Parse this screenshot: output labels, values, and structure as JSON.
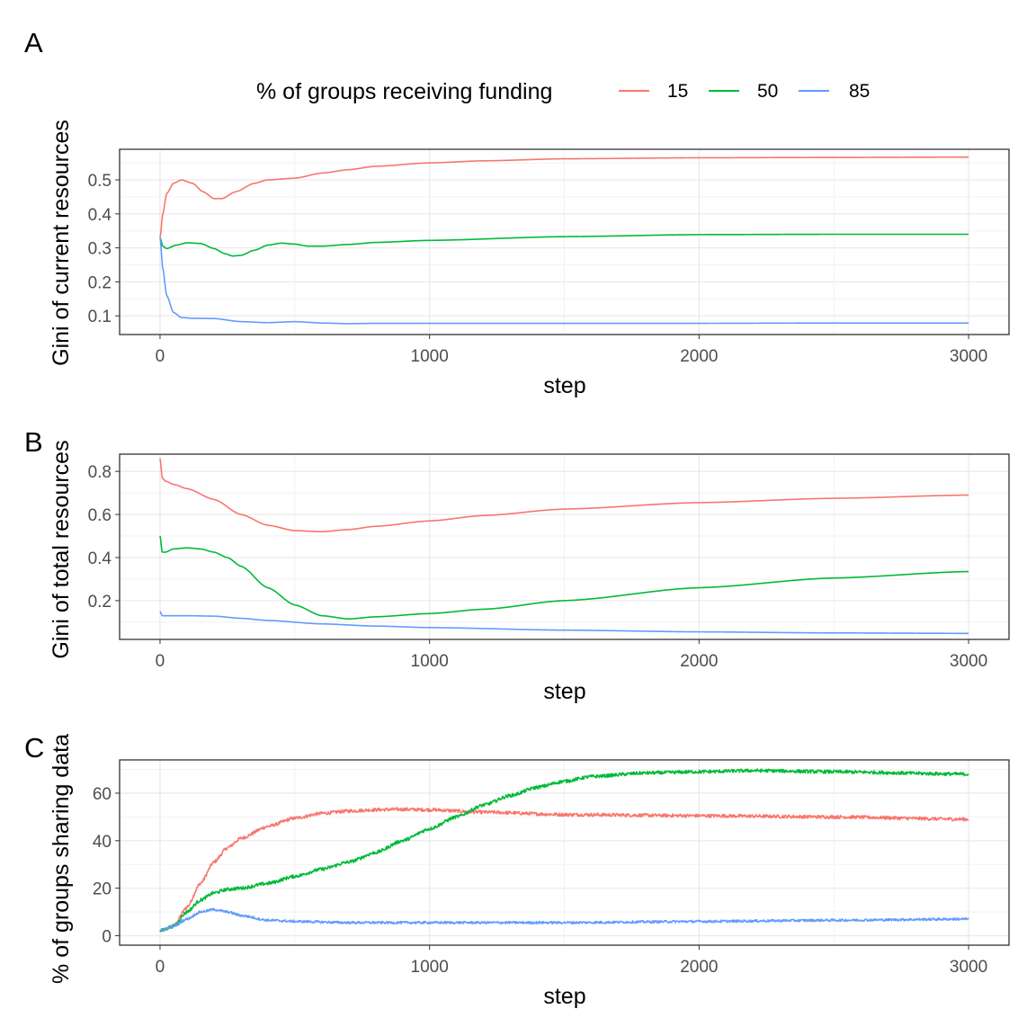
{
  "legend": {
    "title": "% of groups receiving funding",
    "entries": [
      {
        "label": "15",
        "color": "#F8766D"
      },
      {
        "label": "50",
        "color": "#00BA38"
      },
      {
        "label": "85",
        "color": "#619CFF"
      }
    ]
  },
  "chart_data": [
    {
      "panel": "A",
      "type": "line",
      "xlabel": "step",
      "ylabel": "Gini of current resources",
      "xlim": [
        -150,
        3150
      ],
      "ylim": [
        0.045,
        0.59
      ],
      "xticks": [
        0,
        1000,
        2000,
        3000
      ],
      "yticks": [
        0.1,
        0.2,
        0.3,
        0.4,
        0.5
      ],
      "ytick_labels": [
        "0.1",
        "0.2",
        "0.3",
        "0.4",
        "0.5"
      ],
      "grid": true,
      "series": [
        {
          "name": "15",
          "color": "#F8766D",
          "x": [
            0,
            10,
            25,
            50,
            80,
            120,
            160,
            200,
            230,
            280,
            350,
            400,
            500,
            600,
            700,
            800,
            1000,
            1200,
            1500,
            2000,
            2500,
            3000
          ],
          "y": [
            0.33,
            0.4,
            0.46,
            0.49,
            0.5,
            0.49,
            0.465,
            0.445,
            0.445,
            0.465,
            0.49,
            0.5,
            0.505,
            0.52,
            0.53,
            0.54,
            0.55,
            0.556,
            0.562,
            0.565,
            0.566,
            0.567
          ]
        },
        {
          "name": "50",
          "color": "#00BA38",
          "x": [
            0,
            10,
            25,
            60,
            100,
            150,
            200,
            240,
            270,
            300,
            350,
            400,
            450,
            500,
            550,
            600,
            700,
            800,
            1000,
            1500,
            2000,
            2500,
            3000
          ],
          "y": [
            0.33,
            0.305,
            0.298,
            0.308,
            0.315,
            0.313,
            0.298,
            0.283,
            0.276,
            0.278,
            0.293,
            0.308,
            0.314,
            0.311,
            0.305,
            0.305,
            0.31,
            0.316,
            0.322,
            0.333,
            0.339,
            0.34,
            0.34
          ]
        },
        {
          "name": "85",
          "color": "#619CFF",
          "x": [
            0,
            10,
            25,
            50,
            80,
            120,
            200,
            300,
            400,
            500,
            600,
            700,
            800,
            1000,
            1500,
            2000,
            2500,
            3000
          ],
          "y": [
            0.33,
            0.24,
            0.16,
            0.11,
            0.095,
            0.093,
            0.092,
            0.083,
            0.08,
            0.083,
            0.079,
            0.077,
            0.078,
            0.078,
            0.078,
            0.078,
            0.079,
            0.079
          ]
        }
      ]
    },
    {
      "panel": "B",
      "type": "line",
      "xlabel": "step",
      "ylabel": "Gini of total resources",
      "xlim": [
        -150,
        3150
      ],
      "ylim": [
        0.02,
        0.88
      ],
      "xticks": [
        0,
        1000,
        2000,
        3000
      ],
      "yticks": [
        0.2,
        0.4,
        0.6,
        0.8
      ],
      "ytick_labels": [
        "0.2",
        "0.4",
        "0.6",
        "0.8"
      ],
      "grid": true,
      "series": [
        {
          "name": "15",
          "color": "#F8766D",
          "x": [
            0,
            8,
            20,
            50,
            100,
            200,
            300,
            400,
            500,
            600,
            700,
            800,
            1000,
            1200,
            1500,
            2000,
            2500,
            3000
          ],
          "y": [
            0.86,
            0.77,
            0.755,
            0.74,
            0.72,
            0.67,
            0.6,
            0.55,
            0.525,
            0.52,
            0.53,
            0.545,
            0.57,
            0.595,
            0.625,
            0.655,
            0.675,
            0.69
          ]
        },
        {
          "name": "50",
          "color": "#00BA38",
          "x": [
            0,
            8,
            20,
            50,
            100,
            150,
            200,
            250,
            300,
            400,
            500,
            600,
            700,
            800,
            1000,
            1200,
            1500,
            2000,
            2500,
            3000
          ],
          "y": [
            0.5,
            0.425,
            0.425,
            0.44,
            0.445,
            0.44,
            0.425,
            0.4,
            0.36,
            0.26,
            0.18,
            0.13,
            0.115,
            0.125,
            0.14,
            0.16,
            0.2,
            0.26,
            0.305,
            0.335
          ]
        },
        {
          "name": "85",
          "color": "#619CFF",
          "x": [
            0,
            8,
            20,
            100,
            200,
            300,
            400,
            600,
            800,
            1000,
            1500,
            2000,
            2500,
            3000
          ],
          "y": [
            0.15,
            0.13,
            0.13,
            0.13,
            0.128,
            0.118,
            0.108,
            0.092,
            0.082,
            0.075,
            0.063,
            0.055,
            0.05,
            0.048
          ]
        }
      ]
    },
    {
      "panel": "C",
      "type": "line",
      "xlabel": "step",
      "ylabel": "% of groups sharing data",
      "xlim": [
        -150,
        3150
      ],
      "ylim": [
        -4,
        74
      ],
      "xticks": [
        0,
        1000,
        2000,
        3000
      ],
      "yticks": [
        0,
        20,
        40,
        60
      ],
      "ytick_labels": [
        "0",
        "20",
        "40",
        "60"
      ],
      "grid": true,
      "series": [
        {
          "name": "15",
          "color": "#F8766D",
          "noise": 0.7,
          "x": [
            0,
            50,
            100,
            150,
            200,
            250,
            300,
            400,
            500,
            600,
            700,
            800,
            900,
            1000,
            1200,
            1500,
            2000,
            2500,
            3000
          ],
          "y": [
            2,
            4,
            12,
            22,
            31,
            37,
            41,
            46,
            49.5,
            51.5,
            52.5,
            53,
            53.2,
            53,
            52,
            51,
            50.5,
            50,
            49
          ]
        },
        {
          "name": "50",
          "color": "#00BA38",
          "noise": 0.7,
          "x": [
            0,
            50,
            100,
            150,
            200,
            250,
            300,
            400,
            500,
            600,
            700,
            800,
            900,
            1000,
            1100,
            1200,
            1300,
            1400,
            1500,
            1600,
            1800,
            2000,
            2200,
            2500,
            3000
          ],
          "y": [
            2,
            4,
            10,
            15,
            18,
            19.5,
            20,
            22,
            25,
            28,
            31,
            35,
            40,
            45,
            50,
            55,
            59,
            62.5,
            65,
            67,
            68.5,
            69,
            69.5,
            69,
            68
          ]
        },
        {
          "name": "85",
          "color": "#619CFF",
          "noise": 0.5,
          "x": [
            0,
            50,
            100,
            150,
            200,
            250,
            300,
            400,
            500,
            700,
            1000,
            1500,
            2000,
            2500,
            3000
          ],
          "y": [
            2,
            4,
            7,
            10,
            11,
            10,
            8.5,
            6.5,
            6,
            5.5,
            5.5,
            5.5,
            6,
            6.5,
            7
          ]
        }
      ]
    }
  ]
}
